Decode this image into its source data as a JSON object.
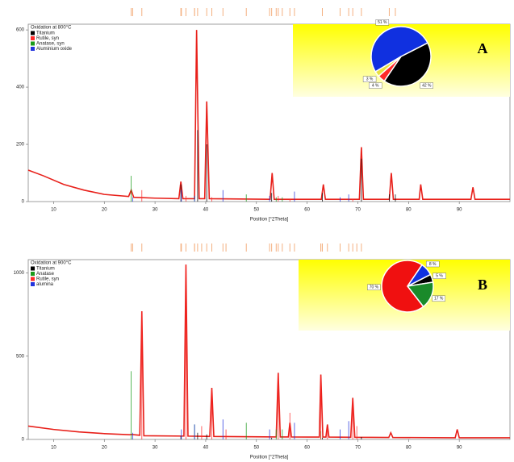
{
  "chart_data": [
    {
      "type": "line",
      "panel_label": "A",
      "legend_title": "Oxidation at 800°C",
      "x_label": "Position [°2Theta]",
      "xlim": [
        5,
        100
      ],
      "xticks": [
        10,
        20,
        30,
        40,
        50,
        60,
        70,
        80,
        90
      ],
      "ylim": [
        0,
        620
      ],
      "yticks": [
        0,
        200,
        400,
        600
      ],
      "pattern": {
        "color": "#e8201a",
        "x": [
          5,
          8,
          12,
          16,
          20,
          24.8,
          25.3,
          25.8,
          30,
          34.7,
          35.1,
          35.5,
          37.8,
          38.2,
          38.7,
          39.8,
          40.2,
          40.7,
          52.7,
          53.1,
          53.5,
          62.8,
          63.2,
          63.6,
          70.3,
          70.7,
          71.1,
          76.2,
          76.6,
          77,
          82.1,
          82.4,
          82.8,
          92.3,
          92.7,
          93.1,
          100
        ],
        "values": [
          110,
          90,
          60,
          40,
          25,
          18,
          40,
          15,
          12,
          10,
          70,
          10,
          10,
          600,
          10,
          10,
          350,
          10,
          8,
          100,
          8,
          8,
          60,
          8,
          8,
          190,
          8,
          8,
          100,
          8,
          8,
          60,
          8,
          8,
          50,
          8,
          8
        ]
      },
      "series": [
        {
          "name": "Titanium",
          "color": "#000000",
          "x": [
            35.1,
            38.4,
            40.2,
            53.0,
            63.0,
            70.7,
            76.2,
            77.4
          ],
          "values": [
            60,
            250,
            200,
            30,
            30,
            150,
            25,
            25
          ]
        },
        {
          "name": "Rutile, syn",
          "color": "#ff2a2a",
          "x": [
            27.4,
            36.1,
            41.2,
            54.3,
            56.6,
            69.0
          ],
          "values": [
            40,
            20,
            15,
            20,
            10,
            10
          ]
        },
        {
          "name": "Anatase, syn",
          "color": "#1a9a1a",
          "x": [
            25.3,
            37.8,
            48.0,
            53.9,
            55.1
          ],
          "values": [
            90,
            20,
            25,
            15,
            15
          ]
        },
        {
          "name": "Aluminium oxide",
          "color": "#2233dd",
          "x": [
            25.6,
            35.2,
            37.8,
            43.4,
            52.6,
            57.5,
            66.5,
            68.2
          ],
          "values": [
            15,
            40,
            20,
            40,
            20,
            35,
            15,
            25
          ]
        }
      ]
    },
    {
      "type": "pie",
      "values": [
        42,
        4,
        3,
        51
      ],
      "value_labels": [
        "42 %",
        "4 %",
        "3 %",
        "51 %"
      ],
      "colors": [
        "#000000",
        "#ff2a2a",
        "#e8e040",
        "#1030e0"
      ]
    },
    {
      "type": "line",
      "panel_label": "B",
      "legend_title": "Oxidation at 900°C",
      "x_label": "Position [°2Theta]",
      "xlim": [
        5,
        100
      ],
      "xticks": [
        10,
        20,
        30,
        40,
        50,
        60,
        70,
        80,
        90
      ],
      "ylim": [
        0,
        1080
      ],
      "yticks": [
        0,
        500,
        1000
      ],
      "pattern": {
        "color": "#e8201a",
        "x": [
          5,
          10,
          15,
          20,
          25,
          25.3,
          27.0,
          27.4,
          27.8,
          35.7,
          36.1,
          36.5,
          40.8,
          41.2,
          41.6,
          53.9,
          54.3,
          54.7,
          56.3,
          56.6,
          56.9,
          62.4,
          62.7,
          63.1,
          63.7,
          64.0,
          64.3,
          68.6,
          69.0,
          69.4,
          76.1,
          76.5,
          76.9,
          89.2,
          89.6,
          90,
          100
        ],
        "values": [
          80,
          60,
          45,
          35,
          28,
          30,
          25,
          770,
          22,
          20,
          1050,
          20,
          18,
          310,
          18,
          15,
          400,
          15,
          15,
          100,
          15,
          14,
          390,
          14,
          14,
          90,
          14,
          13,
          250,
          13,
          12,
          40,
          12,
          10,
          60,
          10,
          10
        ]
      },
      "series": [
        {
          "name": "Titanium",
          "color": "#000000",
          "x": [
            35.1,
            38.4,
            40.2,
            53.0,
            63.0,
            70.7
          ],
          "values": [
            20,
            40,
            30,
            10,
            10,
            15
          ]
        },
        {
          "name": "Anatase",
          "color": "#1a9a1a",
          "x": [
            25.3,
            37.8,
            48.0,
            53.9,
            55.1,
            62.7
          ],
          "values": [
            410,
            90,
            100,
            60,
            60,
            50
          ]
        },
        {
          "name": "Rutile, syn",
          "color": "#ff2a2a",
          "x": [
            27.4,
            36.1,
            39.2,
            41.2,
            44.0,
            54.3,
            56.6,
            62.7,
            64.0,
            69.0,
            69.8
          ],
          "values": [
            770,
            1050,
            80,
            300,
            60,
            390,
            160,
            380,
            70,
            240,
            80
          ]
        },
        {
          "name": "alumina",
          "color": "#2233dd",
          "x": [
            25.6,
            35.2,
            37.8,
            43.4,
            52.6,
            57.5,
            66.5,
            68.2
          ],
          "values": [
            40,
            60,
            90,
            120,
            60,
            100,
            60,
            110
          ]
        }
      ]
    },
    {
      "type": "pie",
      "values": [
        5,
        17,
        70,
        8
      ],
      "value_labels": [
        "5 %",
        "17 %",
        "70 %",
        "8 %"
      ],
      "colors": [
        "#000000",
        "#1a8a2a",
        "#f01010",
        "#1030e0"
      ]
    }
  ]
}
